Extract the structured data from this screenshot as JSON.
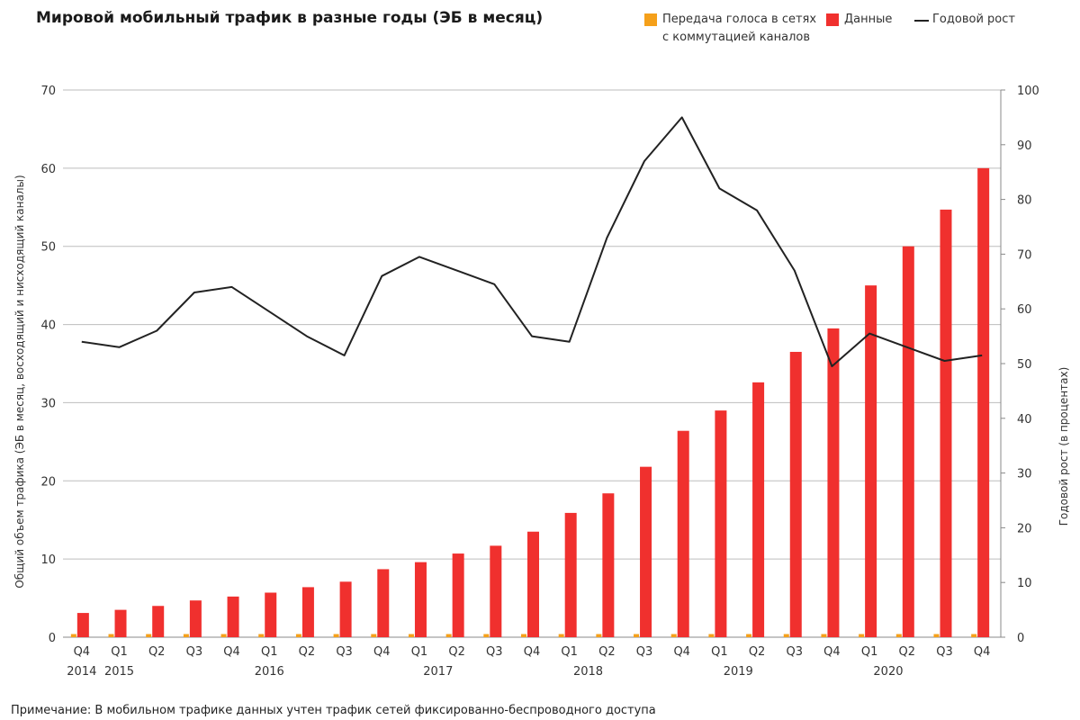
{
  "title": "Мировой мобильный трафик в разные годы (ЭБ в месяц)",
  "note": "Примечание: В мобильном трафике данных учтен трафик сетей фиксированно-беспроводного доступа",
  "legend": {
    "voice_line1": "Передача голоса в сетях",
    "voice_line2": "с коммутацией каналов",
    "data": "Данные",
    "growth": "Годовой рост"
  },
  "colors": {
    "voice": "#f5a01a",
    "data": "#f0302e",
    "growth": "#222222",
    "grid": "#bdbdbd"
  },
  "chart_data": {
    "type": "bar",
    "categories": [
      "Q4",
      "Q1",
      "Q2",
      "Q3",
      "Q4",
      "Q1",
      "Q2",
      "Q3",
      "Q4",
      "Q1",
      "Q2",
      "Q3",
      "Q4",
      "Q1",
      "Q2",
      "Q3",
      "Q4",
      "Q1",
      "Q2",
      "Q3",
      "Q4",
      "Q1",
      "Q2",
      "Q3",
      "Q4"
    ],
    "year_labels": [
      "2014",
      "2015",
      "2016",
      "2017",
      "2018",
      "2019",
      "2020"
    ],
    "series": [
      {
        "name": "Передача голоса в сетях с коммутацией каналов",
        "axis": "left",
        "values": [
          0.4,
          0.4,
          0.4,
          0.4,
          0.4,
          0.4,
          0.4,
          0.4,
          0.4,
          0.4,
          0.4,
          0.4,
          0.4,
          0.4,
          0.4,
          0.4,
          0.4,
          0.4,
          0.4,
          0.4,
          0.4,
          0.4,
          0.4,
          0.4,
          0.4
        ]
      },
      {
        "name": "Данные",
        "axis": "left",
        "values": [
          3.1,
          3.5,
          4.0,
          4.7,
          5.2,
          5.7,
          6.4,
          7.1,
          8.7,
          9.6,
          10.7,
          11.7,
          13.5,
          15.9,
          18.4,
          21.8,
          26.4,
          29.0,
          32.6,
          36.5,
          39.5,
          45.0,
          50.0,
          54.7,
          60.0
        ]
      },
      {
        "name": "Годовой рост",
        "axis": "right",
        "type": "line",
        "values": [
          54,
          53,
          56,
          63,
          64,
          59.5,
          55,
          51.5,
          66,
          69.5,
          67,
          64.5,
          55,
          54,
          73,
          87,
          95,
          82,
          78,
          67,
          49.5,
          55.5,
          53,
          50.5,
          51.5
        ]
      }
    ],
    "ylabel": "Общий объем трафика (ЭБ в месяц, восходящий и нисходящий каналы)",
    "y2label": "Годовой рост (в процентах)",
    "ylim": [
      0,
      70
    ],
    "y2lim": [
      0,
      100
    ],
    "yticks": [
      0,
      10,
      20,
      30,
      40,
      50,
      60,
      70
    ],
    "y2ticks": [
      0,
      10,
      20,
      30,
      40,
      50,
      60,
      70,
      80,
      90,
      100
    ],
    "grid": true,
    "legend_position": "top-right"
  }
}
